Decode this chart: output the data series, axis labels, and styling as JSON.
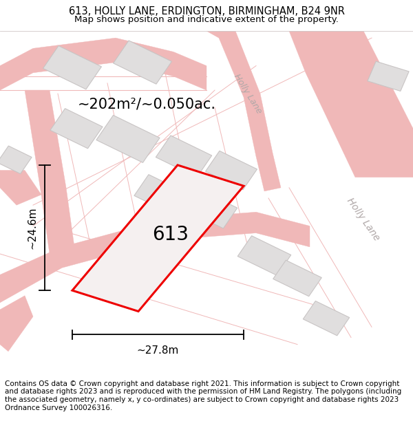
{
  "title_line1": "613, HOLLY LANE, ERDINGTON, BIRMINGHAM, B24 9NR",
  "title_line2": "Map shows position and indicative extent of the property.",
  "footer_text": "Contains OS data © Crown copyright and database right 2021. This information is subject to Crown copyright and database rights 2023 and is reproduced with the permission of HM Land Registry. The polygons (including the associated geometry, namely x, y co-ordinates) are subject to Crown copyright and database rights 2023 Ordnance Survey 100026316.",
  "area_label": "~202m²/~0.050ac.",
  "number_label": "613",
  "dim_width": "~27.8m",
  "dim_height": "~24.6m",
  "background_color": "#ffffff",
  "map_bg_color": "#f8f4f4",
  "road_line_color": "#f0b8b8",
  "building_color": "#e0dede",
  "building_border_color": "#c8c4c4",
  "plot_fill_color": "#f5f0f0",
  "plot_border_color": "#ee0000",
  "road_text_color": "#b0a8a8",
  "dim_color": "#000000",
  "title_fontsize": 10.5,
  "subtitle_fontsize": 9.5,
  "footer_fontsize": 7.5,
  "area_fontsize": 15,
  "number_fontsize": 20,
  "dim_fontsize": 11,
  "road_label_fontsize": 9
}
